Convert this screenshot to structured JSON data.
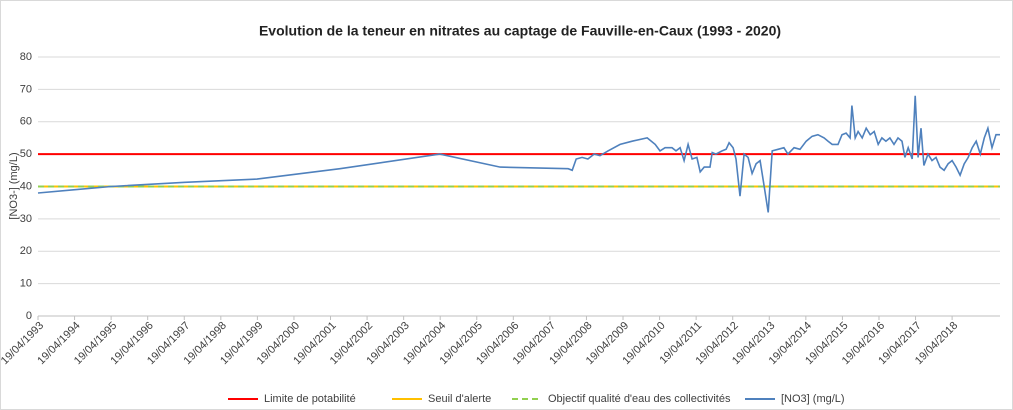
{
  "chart_data": {
    "type": "line",
    "title": "Evolution de la teneur en nitrates au captage de Fauville-en-Caux (1993 - 2020)",
    "y_label": "[NO3-] (mg/L)",
    "xlim": [
      1993.3,
      2019.61
    ],
    "ylim": [
      0,
      80
    ],
    "yticks": [
      0,
      10,
      20,
      30,
      40,
      50,
      60,
      70,
      80
    ],
    "xticks": [
      {
        "value": 1993.3,
        "label": "19/04/1993"
      },
      {
        "value": 1994.3,
        "label": "19/04/1994"
      },
      {
        "value": 1995.3,
        "label": "19/04/1995"
      },
      {
        "value": 1996.3,
        "label": "19/04/1996"
      },
      {
        "value": 1997.3,
        "label": "19/04/1997"
      },
      {
        "value": 1998.3,
        "label": "19/04/1998"
      },
      {
        "value": 1999.3,
        "label": "19/04/1999"
      },
      {
        "value": 2000.3,
        "label": "19/04/2000"
      },
      {
        "value": 2001.3,
        "label": "19/04/2001"
      },
      {
        "value": 2002.3,
        "label": "19/04/2002"
      },
      {
        "value": 2003.3,
        "label": "19/04/2003"
      },
      {
        "value": 2004.3,
        "label": "19/04/2004"
      },
      {
        "value": 2005.3,
        "label": "19/04/2005"
      },
      {
        "value": 2006.3,
        "label": "19/04/2006"
      },
      {
        "value": 2007.3,
        "label": "19/04/2007"
      },
      {
        "value": 2008.3,
        "label": "19/04/2008"
      },
      {
        "value": 2009.3,
        "label": "19/04/2009"
      },
      {
        "value": 2010.3,
        "label": "19/04/2010"
      },
      {
        "value": 2011.3,
        "label": "19/04/2011"
      },
      {
        "value": 2012.3,
        "label": "19/04/2012"
      },
      {
        "value": 2013.3,
        "label": "19/04/2013"
      },
      {
        "value": 2014.3,
        "label": "19/04/2014"
      },
      {
        "value": 2015.3,
        "label": "19/04/2015"
      },
      {
        "value": 2016.3,
        "label": "19/04/2016"
      },
      {
        "value": 2017.3,
        "label": "19/04/2017"
      },
      {
        "value": 2018.3,
        "label": "19/04/2018"
      }
    ],
    "grid": true,
    "reference_lines": [
      {
        "name": "Limite de potabilité",
        "color": "#ff0000",
        "value": 50,
        "dashed": false
      },
      {
        "name": "Seuil d'alerte",
        "color": "#ffc000",
        "value": 40,
        "dashed": false
      },
      {
        "name": "Objectif qualité d'eau des collectivités",
        "color": "#92d050",
        "value": 40,
        "dashed": true
      }
    ],
    "series": [
      {
        "name": "[NO3] (mg/L)",
        "color": "#4f81bd",
        "x": [
          1993.3,
          1994.31,
          1995.3,
          1997.32,
          1999.29,
          2001.56,
          2004.29,
          2005.94,
          2007.8,
          2007.91,
          2008.02,
          2008.18,
          2008.34,
          2008.51,
          2008.67,
          2008.89,
          2009.22,
          2009.55,
          2009.96,
          2010.18,
          2010.31,
          2010.45,
          2010.64,
          2010.75,
          2010.86,
          2010.97,
          2011.08,
          2011.19,
          2011.32,
          2011.41,
          2011.52,
          2011.68,
          2011.74,
          2011.84,
          2012.01,
          2012.12,
          2012.2,
          2012.31,
          2012.39,
          2012.5,
          2012.61,
          2012.72,
          2012.83,
          2012.94,
          2013.05,
          2013.16,
          2013.27,
          2013.38,
          2013.54,
          2013.7,
          2013.81,
          2013.98,
          2014.14,
          2014.31,
          2014.47,
          2014.63,
          2014.8,
          2014.91,
          2015.02,
          2015.18,
          2015.29,
          2015.4,
          2015.51,
          2015.56,
          2015.65,
          2015.73,
          2015.84,
          2015.95,
          2016.06,
          2016.17,
          2016.28,
          2016.38,
          2016.49,
          2016.6,
          2016.71,
          2016.82,
          2016.93,
          2017.01,
          2017.1,
          2017.21,
          2017.29,
          2017.37,
          2017.45,
          2017.53,
          2017.64,
          2017.75,
          2017.86,
          2017.97,
          2018.08,
          2018.19,
          2018.3,
          2018.41,
          2018.52,
          2018.63,
          2018.74,
          2018.85,
          2018.96,
          2019.07,
          2019.18,
          2019.28,
          2019.39,
          2019.5,
          2019.61
        ],
        "values": [
          38,
          39,
          40,
          41.3,
          42.3,
          45.5,
          50,
          46,
          45.5,
          45,
          48.5,
          49,
          48.5,
          50,
          49.5,
          51,
          53,
          54,
          55,
          53,
          51,
          52,
          52,
          51,
          52,
          48,
          53,
          48.5,
          49,
          44.5,
          46,
          46,
          50.5,
          50,
          51,
          51.5,
          53.5,
          52,
          48.5,
          37,
          50,
          49,
          44,
          47,
          48,
          40,
          32,
          51,
          51.5,
          52,
          50,
          52,
          51.5,
          54,
          55.5,
          56,
          55,
          54,
          53,
          53,
          56,
          56.5,
          55,
          65,
          55,
          57,
          55,
          58,
          56,
          57,
          53,
          55,
          54,
          55,
          53,
          55,
          54,
          49,
          52,
          48.5,
          68,
          49,
          58,
          46.5,
          50,
          48,
          49,
          46,
          45,
          47,
          48,
          46,
          43.5,
          47,
          49,
          52,
          54,
          50,
          55,
          58,
          52,
          56,
          56
        ]
      }
    ]
  }
}
